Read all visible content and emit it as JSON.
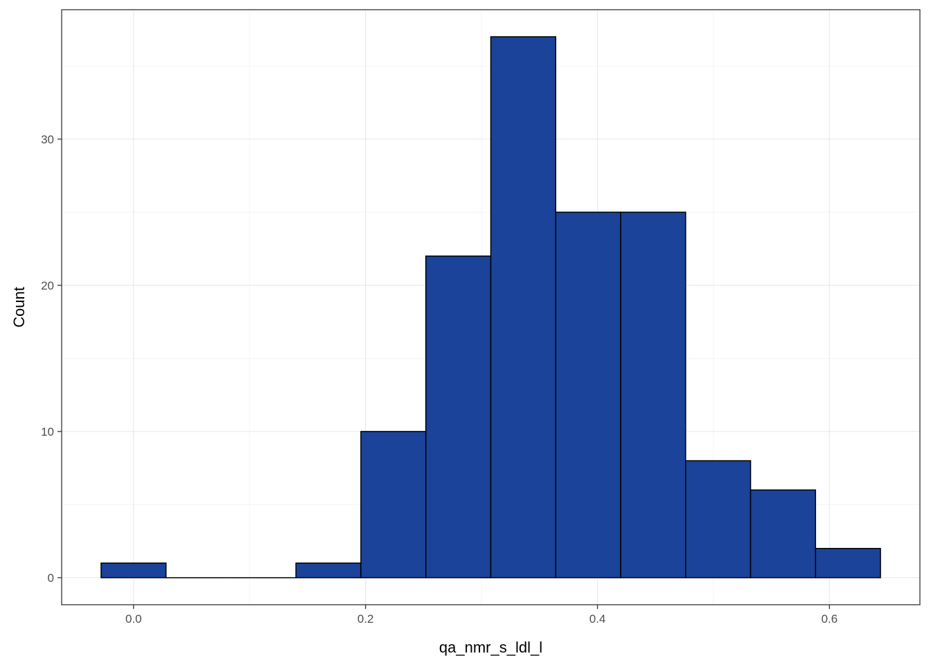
{
  "chart_data": {
    "type": "bar",
    "subtype": "histogram",
    "xlabel": "qa_nmr_s_ldl_l",
    "ylabel": "Count",
    "bin_width": 0.056,
    "bins": [
      {
        "x0": -0.028,
        "x1": 0.028,
        "count": 1
      },
      {
        "x0": 0.028,
        "x1": 0.084,
        "count": 0
      },
      {
        "x0": 0.084,
        "x1": 0.14,
        "count": 0
      },
      {
        "x0": 0.14,
        "x1": 0.196,
        "count": 1
      },
      {
        "x0": 0.196,
        "x1": 0.252,
        "count": 10
      },
      {
        "x0": 0.252,
        "x1": 0.308,
        "count": 22
      },
      {
        "x0": 0.308,
        "x1": 0.364,
        "count": 37
      },
      {
        "x0": 0.364,
        "x1": 0.42,
        "count": 25
      },
      {
        "x0": 0.42,
        "x1": 0.476,
        "count": 25
      },
      {
        "x0": 0.476,
        "x1": 0.532,
        "count": 8
      },
      {
        "x0": 0.532,
        "x1": 0.588,
        "count": 6
      },
      {
        "x0": 0.588,
        "x1": 0.644,
        "count": 2
      }
    ],
    "xlim": [
      -0.062,
      0.678
    ],
    "ylim": [
      -1.85,
      38.85
    ],
    "x_ticks": [
      0.0,
      0.2,
      0.4,
      0.6
    ],
    "x_tick_labels": [
      "0.0",
      "0.2",
      "0.4",
      "0.6"
    ],
    "y_ticks": [
      0,
      10,
      20,
      30
    ],
    "y_tick_labels": [
      "0",
      "10",
      "20",
      "30"
    ],
    "grid": true,
    "legend": "none",
    "colors": {
      "fill": "#1a4399",
      "outline": "#000000",
      "panel_border": "#333333",
      "grid": "#ebebeb"
    }
  }
}
